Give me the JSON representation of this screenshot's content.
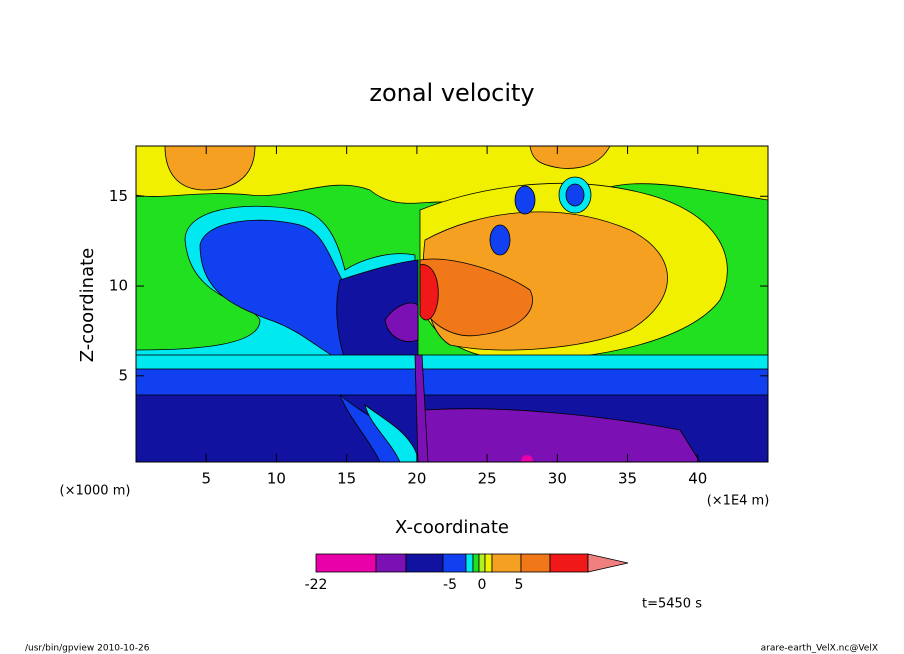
{
  "chart_data": {
    "type": "contour",
    "title": "zonal velocity",
    "x_label": "X-coordinate",
    "y_label": "Z-coordinate",
    "x_unit_label": "(×1E4 m)",
    "y_unit_label": "(×1000 m)",
    "xlim": [
      0,
      45
    ],
    "ylim": [
      0.2,
      17.8
    ],
    "xticks": [
      5,
      10,
      15,
      20,
      25,
      30,
      35,
      40
    ],
    "yticks": [
      5,
      10,
      15
    ],
    "colorbar": {
      "colors": [
        "#e800a8",
        "#7b10b4",
        "#1212a0",
        "#1040f0",
        "#00e8f0",
        "#20e020",
        "#b0f020",
        "#f0f000",
        "#f5a020",
        "#f07818",
        "#f01818",
        "#f08080"
      ],
      "ticks": [
        -22,
        -5,
        0,
        5
      ]
    },
    "time_label": "t=5450 s",
    "footer_left": "/usr/bin/gpview   2010-10-26",
    "footer_right": "arare-earth_VelX.nc@VelX"
  }
}
